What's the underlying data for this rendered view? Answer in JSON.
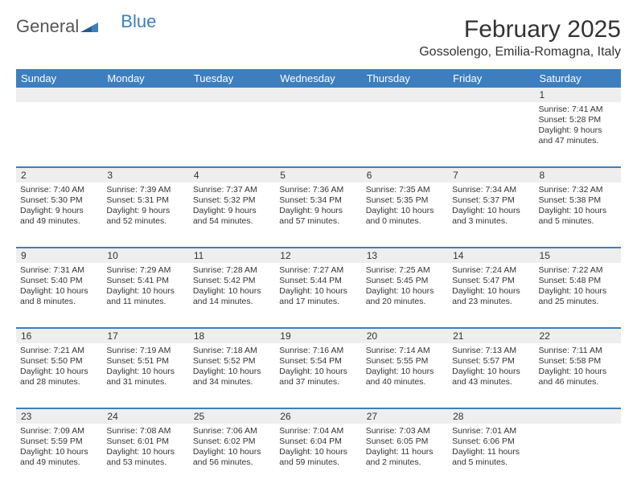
{
  "brand": {
    "part1": "General",
    "part2": "Blue"
  },
  "title": "February 2025",
  "location": "Gossolengo, Emilia-Romagna, Italy",
  "colors": {
    "header_bg": "#3d7ebf",
    "daynum_bg": "#eeeeee",
    "text": "#333333",
    "white": "#ffffff"
  },
  "days_of_week": [
    "Sunday",
    "Monday",
    "Tuesday",
    "Wednesday",
    "Thursday",
    "Friday",
    "Saturday"
  ],
  "weeks": [
    [
      null,
      null,
      null,
      null,
      null,
      null,
      {
        "d": "1",
        "sr": "Sunrise: 7:41 AM",
        "ss": "Sunset: 5:28 PM",
        "dl1": "Daylight: 9 hours",
        "dl2": "and 47 minutes."
      }
    ],
    [
      {
        "d": "2",
        "sr": "Sunrise: 7:40 AM",
        "ss": "Sunset: 5:30 PM",
        "dl1": "Daylight: 9 hours",
        "dl2": "and 49 minutes."
      },
      {
        "d": "3",
        "sr": "Sunrise: 7:39 AM",
        "ss": "Sunset: 5:31 PM",
        "dl1": "Daylight: 9 hours",
        "dl2": "and 52 minutes."
      },
      {
        "d": "4",
        "sr": "Sunrise: 7:37 AM",
        "ss": "Sunset: 5:32 PM",
        "dl1": "Daylight: 9 hours",
        "dl2": "and 54 minutes."
      },
      {
        "d": "5",
        "sr": "Sunrise: 7:36 AM",
        "ss": "Sunset: 5:34 PM",
        "dl1": "Daylight: 9 hours",
        "dl2": "and 57 minutes."
      },
      {
        "d": "6",
        "sr": "Sunrise: 7:35 AM",
        "ss": "Sunset: 5:35 PM",
        "dl1": "Daylight: 10 hours",
        "dl2": "and 0 minutes."
      },
      {
        "d": "7",
        "sr": "Sunrise: 7:34 AM",
        "ss": "Sunset: 5:37 PM",
        "dl1": "Daylight: 10 hours",
        "dl2": "and 3 minutes."
      },
      {
        "d": "8",
        "sr": "Sunrise: 7:32 AM",
        "ss": "Sunset: 5:38 PM",
        "dl1": "Daylight: 10 hours",
        "dl2": "and 5 minutes."
      }
    ],
    [
      {
        "d": "9",
        "sr": "Sunrise: 7:31 AM",
        "ss": "Sunset: 5:40 PM",
        "dl1": "Daylight: 10 hours",
        "dl2": "and 8 minutes."
      },
      {
        "d": "10",
        "sr": "Sunrise: 7:29 AM",
        "ss": "Sunset: 5:41 PM",
        "dl1": "Daylight: 10 hours",
        "dl2": "and 11 minutes."
      },
      {
        "d": "11",
        "sr": "Sunrise: 7:28 AM",
        "ss": "Sunset: 5:42 PM",
        "dl1": "Daylight: 10 hours",
        "dl2": "and 14 minutes."
      },
      {
        "d": "12",
        "sr": "Sunrise: 7:27 AM",
        "ss": "Sunset: 5:44 PM",
        "dl1": "Daylight: 10 hours",
        "dl2": "and 17 minutes."
      },
      {
        "d": "13",
        "sr": "Sunrise: 7:25 AM",
        "ss": "Sunset: 5:45 PM",
        "dl1": "Daylight: 10 hours",
        "dl2": "and 20 minutes."
      },
      {
        "d": "14",
        "sr": "Sunrise: 7:24 AM",
        "ss": "Sunset: 5:47 PM",
        "dl1": "Daylight: 10 hours",
        "dl2": "and 23 minutes."
      },
      {
        "d": "15",
        "sr": "Sunrise: 7:22 AM",
        "ss": "Sunset: 5:48 PM",
        "dl1": "Daylight: 10 hours",
        "dl2": "and 25 minutes."
      }
    ],
    [
      {
        "d": "16",
        "sr": "Sunrise: 7:21 AM",
        "ss": "Sunset: 5:50 PM",
        "dl1": "Daylight: 10 hours",
        "dl2": "and 28 minutes."
      },
      {
        "d": "17",
        "sr": "Sunrise: 7:19 AM",
        "ss": "Sunset: 5:51 PM",
        "dl1": "Daylight: 10 hours",
        "dl2": "and 31 minutes."
      },
      {
        "d": "18",
        "sr": "Sunrise: 7:18 AM",
        "ss": "Sunset: 5:52 PM",
        "dl1": "Daylight: 10 hours",
        "dl2": "and 34 minutes."
      },
      {
        "d": "19",
        "sr": "Sunrise: 7:16 AM",
        "ss": "Sunset: 5:54 PM",
        "dl1": "Daylight: 10 hours",
        "dl2": "and 37 minutes."
      },
      {
        "d": "20",
        "sr": "Sunrise: 7:14 AM",
        "ss": "Sunset: 5:55 PM",
        "dl1": "Daylight: 10 hours",
        "dl2": "and 40 minutes."
      },
      {
        "d": "21",
        "sr": "Sunrise: 7:13 AM",
        "ss": "Sunset: 5:57 PM",
        "dl1": "Daylight: 10 hours",
        "dl2": "and 43 minutes."
      },
      {
        "d": "22",
        "sr": "Sunrise: 7:11 AM",
        "ss": "Sunset: 5:58 PM",
        "dl1": "Daylight: 10 hours",
        "dl2": "and 46 minutes."
      }
    ],
    [
      {
        "d": "23",
        "sr": "Sunrise: 7:09 AM",
        "ss": "Sunset: 5:59 PM",
        "dl1": "Daylight: 10 hours",
        "dl2": "and 49 minutes."
      },
      {
        "d": "24",
        "sr": "Sunrise: 7:08 AM",
        "ss": "Sunset: 6:01 PM",
        "dl1": "Daylight: 10 hours",
        "dl2": "and 53 minutes."
      },
      {
        "d": "25",
        "sr": "Sunrise: 7:06 AM",
        "ss": "Sunset: 6:02 PM",
        "dl1": "Daylight: 10 hours",
        "dl2": "and 56 minutes."
      },
      {
        "d": "26",
        "sr": "Sunrise: 7:04 AM",
        "ss": "Sunset: 6:04 PM",
        "dl1": "Daylight: 10 hours",
        "dl2": "and 59 minutes."
      },
      {
        "d": "27",
        "sr": "Sunrise: 7:03 AM",
        "ss": "Sunset: 6:05 PM",
        "dl1": "Daylight: 11 hours",
        "dl2": "and 2 minutes."
      },
      {
        "d": "28",
        "sr": "Sunrise: 7:01 AM",
        "ss": "Sunset: 6:06 PM",
        "dl1": "Daylight: 11 hours",
        "dl2": "and 5 minutes."
      },
      null
    ]
  ]
}
